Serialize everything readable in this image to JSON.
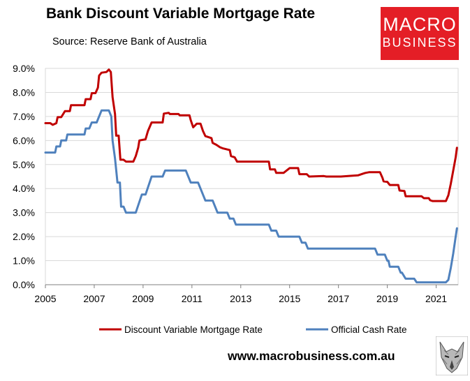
{
  "header": {
    "title": "Bank Discount Variable Mortgage Rate",
    "source": "Source: Reserve Bank of Australia"
  },
  "logo": {
    "line1": "MACRO",
    "line2": "BUSINESS"
  },
  "footer": {
    "website": "www.macrobusiness.com.au"
  },
  "icons": {
    "wolf": "wolf-logo-icon"
  },
  "chart_data": {
    "type": "line",
    "title": "Bank Discount Variable Mortgage Rate",
    "xlim": [
      2005,
      2021.9
    ],
    "ylim": [
      0,
      9
    ],
    "x_ticks": [
      "2005",
      "2007",
      "2009",
      "2011",
      "2013",
      "2015",
      "2017",
      "2019",
      "2021"
    ],
    "y_ticks": [
      "0.0%",
      "1.0%",
      "2.0%",
      "3.0%",
      "4.0%",
      "5.0%",
      "6.0%",
      "7.0%",
      "8.0%",
      "9.0%"
    ],
    "grid": true,
    "legend": "bottom",
    "series": [
      {
        "name": "Discount Variable Mortgage Rate",
        "color": "#c00000",
        "points": [
          [
            2005,
            6.72
          ],
          [
            2005.2,
            6.72
          ],
          [
            2005.3,
            6.65
          ],
          [
            2005.45,
            6.72
          ],
          [
            2005.5,
            6.97
          ],
          [
            2005.65,
            6.97
          ],
          [
            2005.8,
            7.22
          ],
          [
            2006,
            7.22
          ],
          [
            2006.05,
            7.47
          ],
          [
            2006.6,
            7.47
          ],
          [
            2006.65,
            7.72
          ],
          [
            2006.85,
            7.72
          ],
          [
            2006.9,
            7.97
          ],
          [
            2007.05,
            7.97
          ],
          [
            2007.15,
            8.2
          ],
          [
            2007.2,
            8.7
          ],
          [
            2007.3,
            8.82
          ],
          [
            2007.5,
            8.85
          ],
          [
            2007.6,
            8.95
          ],
          [
            2007.68,
            8.85
          ],
          [
            2007.75,
            7.8
          ],
          [
            2007.85,
            7.1
          ],
          [
            2007.9,
            6.2
          ],
          [
            2008,
            6.2
          ],
          [
            2008.07,
            5.2
          ],
          [
            2008.2,
            5.2
          ],
          [
            2008.3,
            5.12
          ],
          [
            2008.6,
            5.12
          ],
          [
            2008.7,
            5.35
          ],
          [
            2008.8,
            5.7
          ],
          [
            2008.85,
            6.0
          ],
          [
            2009.1,
            6.05
          ],
          [
            2009.2,
            6.4
          ],
          [
            2009.35,
            6.75
          ],
          [
            2009.8,
            6.75
          ],
          [
            2009.85,
            7.12
          ],
          [
            2010.05,
            7.15
          ],
          [
            2010.1,
            7.1
          ],
          [
            2010.45,
            7.1
          ],
          [
            2010.5,
            7.05
          ],
          [
            2010.9,
            7.05
          ],
          [
            2010.95,
            6.85
          ],
          [
            2011.05,
            6.55
          ],
          [
            2011.2,
            6.7
          ],
          [
            2011.35,
            6.7
          ],
          [
            2011.45,
            6.4
          ],
          [
            2011.55,
            6.18
          ],
          [
            2011.8,
            6.1
          ],
          [
            2011.85,
            5.9
          ],
          [
            2012.0,
            5.82
          ],
          [
            2012.15,
            5.72
          ],
          [
            2012.25,
            5.68
          ],
          [
            2012.55,
            5.6
          ],
          [
            2012.6,
            5.35
          ],
          [
            2012.75,
            5.3
          ],
          [
            2012.85,
            5.12
          ],
          [
            2014.15,
            5.12
          ],
          [
            2014.2,
            4.8
          ],
          [
            2014.4,
            4.8
          ],
          [
            2014.45,
            4.65
          ],
          [
            2014.75,
            4.65
          ],
          [
            2015.0,
            4.85
          ],
          [
            2015.35,
            4.85
          ],
          [
            2015.4,
            4.6
          ],
          [
            2015.7,
            4.6
          ],
          [
            2015.8,
            4.5
          ],
          [
            2016.4,
            4.52
          ],
          [
            2016.5,
            4.5
          ],
          [
            2017.0,
            4.5
          ],
          [
            2017.1,
            4.5
          ],
          [
            2017.8,
            4.55
          ],
          [
            2018.0,
            4.62
          ],
          [
            2018.1,
            4.65
          ],
          [
            2018.25,
            4.68
          ],
          [
            2018.7,
            4.68
          ],
          [
            2018.8,
            4.45
          ],
          [
            2018.85,
            4.3
          ],
          [
            2019.0,
            4.28
          ],
          [
            2019.1,
            4.15
          ],
          [
            2019.45,
            4.15
          ],
          [
            2019.5,
            3.92
          ],
          [
            2019.7,
            3.9
          ],
          [
            2019.75,
            3.68
          ],
          [
            2020.4,
            3.68
          ],
          [
            2020.5,
            3.6
          ],
          [
            2020.7,
            3.6
          ],
          [
            2020.75,
            3.52
          ],
          [
            2020.85,
            3.48
          ],
          [
            2021.4,
            3.48
          ],
          [
            2021.5,
            3.72
          ],
          [
            2021.6,
            4.2
          ],
          [
            2021.7,
            4.75
          ],
          [
            2021.8,
            5.3
          ],
          [
            2021.85,
            5.7
          ]
        ]
      },
      {
        "name": "Official Cash Rate",
        "color": "#4f81bd",
        "points": [
          [
            2005,
            5.5
          ],
          [
            2005.4,
            5.5
          ],
          [
            2005.45,
            5.75
          ],
          [
            2005.6,
            5.75
          ],
          [
            2005.65,
            6.0
          ],
          [
            2005.85,
            6.0
          ],
          [
            2005.9,
            6.25
          ],
          [
            2006.6,
            6.25
          ],
          [
            2006.65,
            6.5
          ],
          [
            2006.8,
            6.5
          ],
          [
            2006.9,
            6.75
          ],
          [
            2007.1,
            6.75
          ],
          [
            2007.3,
            7.25
          ],
          [
            2007.6,
            7.25
          ],
          [
            2007.7,
            7.0
          ],
          [
            2007.75,
            6.0
          ],
          [
            2007.85,
            5.25
          ],
          [
            2007.95,
            4.25
          ],
          [
            2008.05,
            4.25
          ],
          [
            2008.1,
            3.25
          ],
          [
            2008.2,
            3.25
          ],
          [
            2008.3,
            3.0
          ],
          [
            2008.7,
            3.0
          ],
          [
            2008.95,
            3.75
          ],
          [
            2009.1,
            3.75
          ],
          [
            2009.35,
            4.5
          ],
          [
            2009.8,
            4.5
          ],
          [
            2009.9,
            4.75
          ],
          [
            2010.75,
            4.75
          ],
          [
            2010.95,
            4.25
          ],
          [
            2011.25,
            4.25
          ],
          [
            2011.45,
            3.75
          ],
          [
            2011.55,
            3.5
          ],
          [
            2011.85,
            3.5
          ],
          [
            2011.95,
            3.25
          ],
          [
            2012.05,
            3.0
          ],
          [
            2012.45,
            3.0
          ],
          [
            2012.55,
            2.75
          ],
          [
            2012.7,
            2.75
          ],
          [
            2012.8,
            2.5
          ],
          [
            2014.15,
            2.5
          ],
          [
            2014.25,
            2.25
          ],
          [
            2014.45,
            2.25
          ],
          [
            2014.55,
            2.0
          ],
          [
            2015.4,
            2.0
          ],
          [
            2015.5,
            1.75
          ],
          [
            2015.65,
            1.75
          ],
          [
            2015.75,
            1.5
          ],
          [
            2018.5,
            1.5
          ],
          [
            2018.6,
            1.25
          ],
          [
            2018.9,
            1.25
          ],
          [
            2019.0,
            1.0
          ],
          [
            2019.05,
            1.0
          ],
          [
            2019.1,
            0.75
          ],
          [
            2019.45,
            0.75
          ],
          [
            2019.55,
            0.5
          ],
          [
            2019.6,
            0.5
          ],
          [
            2019.75,
            0.25
          ],
          [
            2020.1,
            0.25
          ],
          [
            2020.2,
            0.1
          ],
          [
            2021.4,
            0.1
          ],
          [
            2021.5,
            0.2
          ],
          [
            2021.6,
            0.7
          ],
          [
            2021.7,
            1.3
          ],
          [
            2021.8,
            2.0
          ],
          [
            2021.85,
            2.35
          ]
        ]
      }
    ]
  }
}
